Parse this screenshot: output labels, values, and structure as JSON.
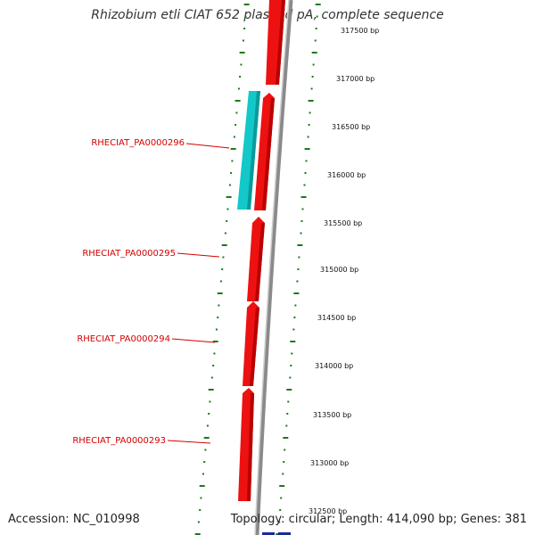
{
  "title": "Rhizobium etli CIAT 652 plasmid pA, complete sequence",
  "footer": {
    "accession": "Accession: NC_010998",
    "summary": "Topology: circular; Length: 414,090 bp; Genes: 381"
  },
  "colors": {
    "forward_gene": "#ee1111",
    "reverse_gene": "#12c8c8",
    "backbone": "#8a8a8a",
    "tick": "#1a7a1a",
    "label": "#d40000"
  },
  "tick_labels": [
    "317500 bp",
    "317000 bp",
    "316500 bp",
    "316000 bp",
    "315500 bp",
    "315000 bp",
    "314500 bp",
    "314000 bp",
    "313500 bp",
    "313000 bp",
    "312500 bp"
  ],
  "gene_labels": [
    "RHECIAT_PA0000296",
    "RHECIAT_PA0000295",
    "RHECIAT_PA0000294",
    "RHECIAT_PA0000293"
  ]
}
